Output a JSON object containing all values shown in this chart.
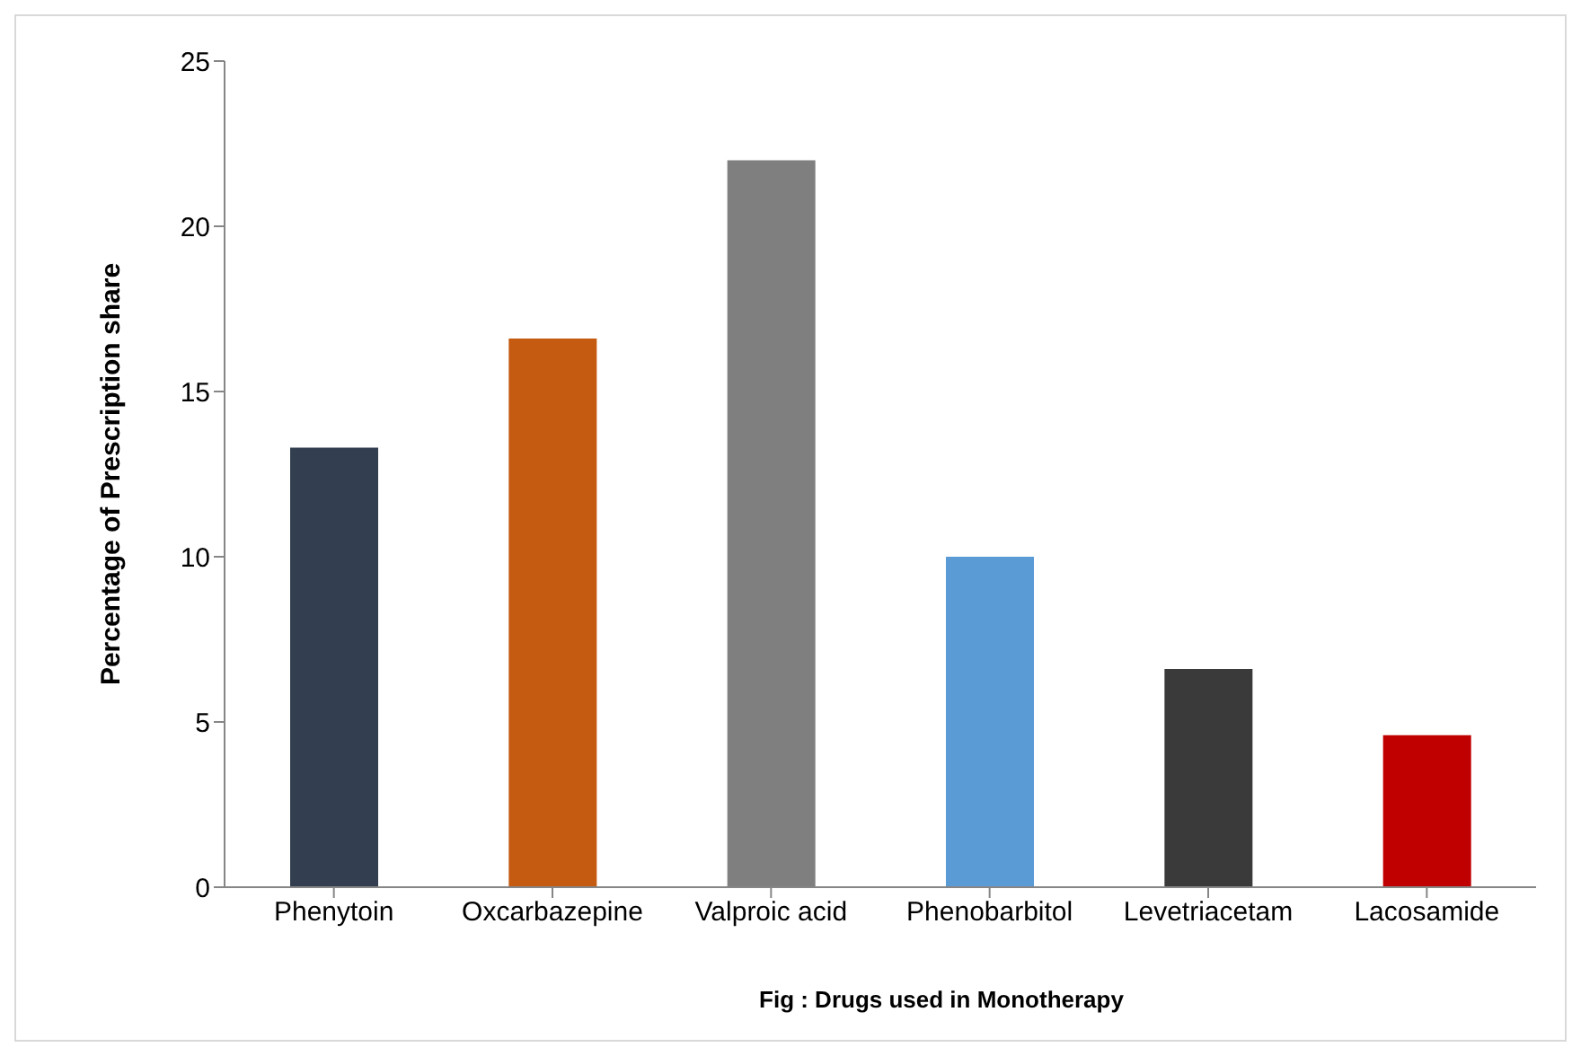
{
  "chart_data": {
    "type": "bar",
    "xlabel": "Fig : Drugs used in Monotherapy",
    "ylabel": "Percentage of Prescription  share",
    "categories": [
      "Phenytoin",
      "Oxcarbazepine",
      "Valproic acid",
      "Phenobarbitol",
      "Levetriacetam",
      "Lacosamide"
    ],
    "values": [
      13.3,
      16.6,
      22,
      10,
      6.6,
      4.6
    ],
    "colors": [
      "#333f50",
      "#c55a11",
      "#7f7f7f",
      "#5b9bd5",
      "#3a3a3a",
      "#c00000"
    ],
    "ylim": [
      0,
      25
    ],
    "yticks": [
      0,
      5,
      10,
      15,
      20,
      25
    ],
    "grid": false,
    "legend": false
  }
}
